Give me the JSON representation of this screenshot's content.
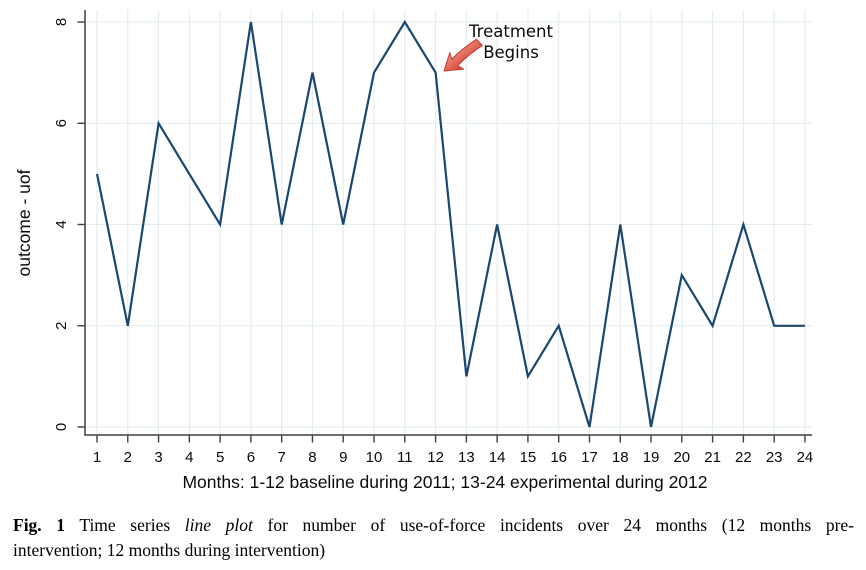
{
  "figure": {
    "annotation": {
      "line1": "Treatment",
      "line2": "Begins"
    }
  },
  "chart_data": {
    "type": "line",
    "x": [
      1,
      2,
      3,
      4,
      5,
      6,
      7,
      8,
      9,
      10,
      11,
      12,
      13,
      14,
      15,
      16,
      17,
      18,
      19,
      20,
      21,
      22,
      23,
      24
    ],
    "values": [
      5,
      2,
      6,
      5,
      4,
      8,
      4,
      7,
      4,
      7,
      8,
      7,
      1,
      4,
      1,
      2,
      0,
      4,
      0,
      3,
      2,
      4,
      2,
      2
    ],
    "series_name": "outcome - uof",
    "title": "",
    "xlabel": "Months: 1-12 baseline during 2011; 13-24 experimental during 2012",
    "ylabel": "outcome - uof",
    "ylim": [
      0,
      8
    ],
    "yticks": [
      0,
      2,
      4,
      6,
      8
    ],
    "grid": true,
    "legend": "none",
    "annotation": "Treatment Begins",
    "annotation_points_to_x": 12,
    "colors": {
      "line": "#1a476f",
      "grid": "#e2ecf1",
      "axis": "#3f3f3f",
      "tick_text": "#0a0a0a",
      "annotation_text": "#2b2b2b",
      "arrow_light": "#f2907e",
      "arrow_dark": "#cf4437",
      "arrow_outline": "#c13a2e",
      "background": "#ffffff"
    }
  },
  "caption": {
    "bold": "Fig. 1",
    "normal1": "Time series",
    "italic1": "line plot",
    "normal2": "for number of use-of-force incidents over 24 months (12 months pre-",
    "line2": "intervention; 12 months during intervention)"
  }
}
